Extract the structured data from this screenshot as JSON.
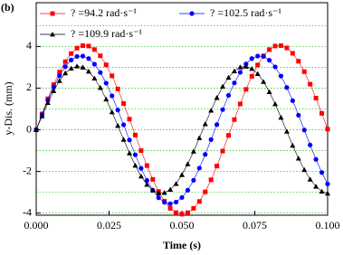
{
  "chart_data": {
    "type": "line",
    "panel_label": "(b)",
    "x_label": "Time (s)",
    "y_label": "y-Dis. (mm)",
    "x": [
      0,
      0.002,
      0.004,
      0.006,
      0.008,
      0.01,
      0.012,
      0.014,
      0.016,
      0.018,
      0.02,
      0.022,
      0.024,
      0.026,
      0.028,
      0.03,
      0.032,
      0.034,
      0.036,
      0.038,
      0.04,
      0.042,
      0.044,
      0.046,
      0.048,
      0.05,
      0.052,
      0.054,
      0.056,
      0.058,
      0.06,
      0.062,
      0.064,
      0.066,
      0.068,
      0.07,
      0.072,
      0.074,
      0.076,
      0.078,
      0.08,
      0.082,
      0.084,
      0.086,
      0.088,
      0.09,
      0.092,
      0.094,
      0.096,
      0.098,
      0.1
    ],
    "series": [
      {
        "name": "? =94.2 rad·s⁻¹",
        "color": "#ff0000",
        "marker": "square",
        "values": [
          0,
          0.76,
          1.49,
          2.17,
          2.77,
          3.27,
          3.66,
          3.92,
          4.04,
          4.02,
          3.85,
          3.55,
          3.12,
          2.59,
          1.96,
          1.26,
          0.51,
          -0.25,
          -1.0,
          -1.72,
          -2.38,
          -2.96,
          -3.43,
          -3.77,
          -3.98,
          -4.05,
          -3.98,
          -3.77,
          -3.44,
          -2.98,
          -2.4,
          -1.74,
          -1.02,
          -0.27,
          0.49,
          1.24,
          1.94,
          2.57,
          3.11,
          3.55,
          3.85,
          4.02,
          4.04,
          3.93,
          3.67,
          3.29,
          2.79,
          2.19,
          1.52,
          0.79,
          0.03
        ]
      },
      {
        "name": "? =102.5 rad·s⁻¹",
        "color": "#0000ff",
        "marker": "circle",
        "values": [
          0,
          0.72,
          1.42,
          2.05,
          2.6,
          3.03,
          3.35,
          3.52,
          3.54,
          3.42,
          3.15,
          2.75,
          2.24,
          1.63,
          0.95,
          0.24,
          -0.49,
          -1.2,
          -1.85,
          -2.43,
          -2.9,
          -3.26,
          -3.48,
          -3.55,
          -3.47,
          -3.25,
          -2.9,
          -2.42,
          -1.84,
          -1.18,
          -0.47,
          0.25,
          0.97,
          1.65,
          2.25,
          2.76,
          3.16,
          3.42,
          3.54,
          3.52,
          3.34,
          3.02,
          2.58,
          2.03,
          1.4,
          0.7,
          -0.01,
          -0.73,
          -1.42,
          -2.05,
          -2.6
        ]
      },
      {
        "name": "? =109.9 rad·s⁻¹",
        "color": "#000000",
        "marker": "triangle",
        "values": [
          0,
          0.66,
          1.3,
          1.87,
          2.35,
          2.72,
          2.95,
          3.05,
          3.0,
          2.8,
          2.47,
          2.02,
          1.47,
          0.85,
          0.2,
          -0.47,
          -1.12,
          -1.71,
          -2.23,
          -2.63,
          -2.9,
          -3.04,
          -3.02,
          -2.87,
          -2.59,
          -2.16,
          -1.64,
          -1.04,
          -0.39,
          0.28,
          0.93,
          1.54,
          2.08,
          2.51,
          2.82,
          3.01,
          3.04,
          2.93,
          2.69,
          2.31,
          1.82,
          1.24,
          0.59,
          -0.08,
          -0.75,
          -1.37,
          -1.92,
          -2.38,
          -2.72,
          -2.96,
          -3.05
        ]
      }
    ],
    "xlim": [
      0,
      0.1
    ],
    "xticks": [
      {
        "value": 0,
        "label": "0.000"
      },
      {
        "value": 0.025,
        "label": "0.025"
      },
      {
        "value": 0.05,
        "label": "0.050"
      },
      {
        "value": 0.075,
        "label": "0.075"
      },
      {
        "value": 0.1,
        "label": "0.100"
      }
    ],
    "ylim": [
      -4.1,
      6.1
    ],
    "yticks": [
      -4,
      -2,
      0,
      2,
      4
    ],
    "minor_yticks": [
      -3,
      -1,
      1,
      3,
      5
    ],
    "grid": true,
    "grid_color": "#33cc33"
  }
}
